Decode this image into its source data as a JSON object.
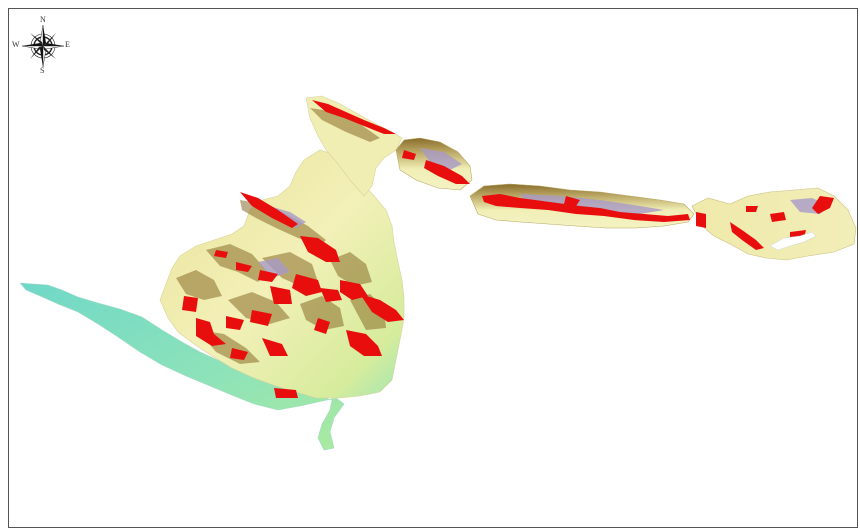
{
  "compass": {
    "north": "N",
    "south": "S",
    "east": "E",
    "west": "W"
  },
  "colors": {
    "frame": "#555555",
    "terrain_low": "#7fe0c6",
    "terrain_mid": "#f1efb0",
    "terrain_high": "#8a6d2a",
    "ridge_shadow": "#a89ac8",
    "hazard": "#e80e0e"
  },
  "icons": [
    "compass-rose-icon"
  ]
}
